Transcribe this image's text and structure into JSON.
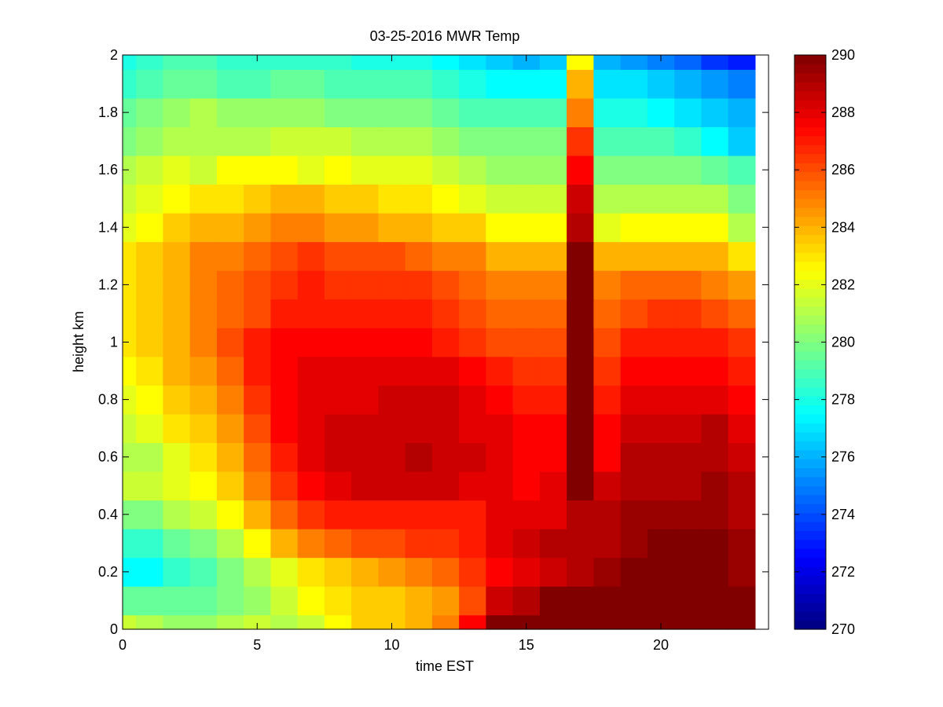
{
  "chart_data": {
    "type": "heatmap",
    "title": "03-25-2016 MWR Temp",
    "xlabel": "time EST",
    "ylabel": "height km",
    "xlim": [
      0,
      24
    ],
    "ylim": [
      0,
      2
    ],
    "xticks": [
      "0",
      "5",
      "10",
      "15",
      "20"
    ],
    "yticks": [
      "0",
      "0.2",
      "0.4",
      "0.6",
      "0.8",
      "1",
      "1.2",
      "1.4",
      "1.6",
      "1.8",
      "2"
    ],
    "colorbar": {
      "colormap": "jet",
      "limits": [
        270,
        290
      ],
      "ticks": [
        "270",
        "272",
        "274",
        "276",
        "278",
        "280",
        "282",
        "284",
        "286",
        "288",
        "290"
      ]
    },
    "time_centers": [
      0.0,
      1.0,
      2.0,
      3.0,
      4.0,
      5.0,
      6.0,
      7.0,
      8.0,
      9.0,
      10.0,
      11.0,
      12.0,
      13.0,
      14.0,
      15.0,
      16.0,
      17.0,
      18.0,
      19.0,
      20.0,
      21.0,
      22.0,
      23.0
    ],
    "height_centers": [
      0.0,
      0.1,
      0.2,
      0.3,
      0.4,
      0.5,
      0.6,
      0.7,
      0.8,
      0.9,
      1.0,
      1.1,
      1.2,
      1.3,
      1.4,
      1.5,
      1.6,
      1.7,
      1.8,
      1.9,
      2.0
    ],
    "z_units": "K",
    "z": [
      [
        281.5,
        281.0,
        280.5,
        280.5,
        281.0,
        281.5,
        281.0,
        281.5,
        282.5,
        283.5,
        283.5,
        284.0,
        285.0,
        287.5,
        290.0,
        290.0,
        290.0,
        290.0,
        290.0,
        290.0,
        290.0,
        290.0,
        290.0,
        290.0
      ],
      [
        279.5,
        279.5,
        279.5,
        279.5,
        280.0,
        280.5,
        281.5,
        282.5,
        283.0,
        283.5,
        283.5,
        284.0,
        284.5,
        286.0,
        288.5,
        289.0,
        290.0,
        290.0,
        290.0,
        290.0,
        290.0,
        290.0,
        290.0,
        290.0
      ],
      [
        277.5,
        277.5,
        278.5,
        279.0,
        280.0,
        281.0,
        282.0,
        283.0,
        283.5,
        284.0,
        284.5,
        285.0,
        285.5,
        286.5,
        287.5,
        288.0,
        288.5,
        289.0,
        289.5,
        290.0,
        290.0,
        290.0,
        290.0,
        289.5
      ],
      [
        278.5,
        278.5,
        279.5,
        280.0,
        281.0,
        282.5,
        284.0,
        285.0,
        285.5,
        286.0,
        286.0,
        286.5,
        286.5,
        287.0,
        288.0,
        288.5,
        289.0,
        289.0,
        289.0,
        289.5,
        290.0,
        290.0,
        290.0,
        289.5
      ],
      [
        280.0,
        280.0,
        281.0,
        281.5,
        282.5,
        284.0,
        285.5,
        286.5,
        287.0,
        287.0,
        287.0,
        287.0,
        287.0,
        287.0,
        288.0,
        288.0,
        288.0,
        289.0,
        289.0,
        289.5,
        289.5,
        289.5,
        289.5,
        289.0
      ],
      [
        281.5,
        281.5,
        282.0,
        282.5,
        283.5,
        285.0,
        286.5,
        287.5,
        288.0,
        288.5,
        288.5,
        288.5,
        288.5,
        288.0,
        288.0,
        287.5,
        288.0,
        290.0,
        288.5,
        289.0,
        289.0,
        289.0,
        289.5,
        289.0
      ],
      [
        281.0,
        281.0,
        282.0,
        283.0,
        284.0,
        285.5,
        287.0,
        288.0,
        288.5,
        288.5,
        288.5,
        289.0,
        288.5,
        288.5,
        288.0,
        287.5,
        287.5,
        290.0,
        287.5,
        289.0,
        289.0,
        289.0,
        289.0,
        288.5
      ],
      [
        281.5,
        282.0,
        283.0,
        283.5,
        284.5,
        286.0,
        287.5,
        288.0,
        288.5,
        288.5,
        288.5,
        288.5,
        288.5,
        288.0,
        288.0,
        287.5,
        287.5,
        290.0,
        287.5,
        288.5,
        288.5,
        288.5,
        289.0,
        288.0
      ],
      [
        282.0,
        282.5,
        283.5,
        284.0,
        285.0,
        286.5,
        287.5,
        288.0,
        288.0,
        288.0,
        288.5,
        288.5,
        288.5,
        288.0,
        287.5,
        287.0,
        287.0,
        290.0,
        287.0,
        288.0,
        288.0,
        288.0,
        288.0,
        287.5
      ],
      [
        282.5,
        283.0,
        284.0,
        284.5,
        285.5,
        287.0,
        287.5,
        288.0,
        288.0,
        288.0,
        288.0,
        288.0,
        288.0,
        287.5,
        287.0,
        286.5,
        286.5,
        290.0,
        286.5,
        287.5,
        287.5,
        287.5,
        287.5,
        287.0
      ],
      [
        283.0,
        283.5,
        284.0,
        285.0,
        286.0,
        287.0,
        287.5,
        287.5,
        287.5,
        287.5,
        287.5,
        287.5,
        287.0,
        286.5,
        286.0,
        286.0,
        286.0,
        290.0,
        286.0,
        287.0,
        287.0,
        287.0,
        287.0,
        286.5
      ],
      [
        283.0,
        283.5,
        284.0,
        285.0,
        285.5,
        286.0,
        287.0,
        287.0,
        287.0,
        287.0,
        287.0,
        287.0,
        286.5,
        286.0,
        285.5,
        285.5,
        285.5,
        290.0,
        285.5,
        286.0,
        286.5,
        286.5,
        286.0,
        285.5
      ],
      [
        283.0,
        283.5,
        284.0,
        285.0,
        285.5,
        286.0,
        286.5,
        287.0,
        286.5,
        286.5,
        286.5,
        286.5,
        286.0,
        285.5,
        285.0,
        285.0,
        285.0,
        290.0,
        285.0,
        285.5,
        285.5,
        285.5,
        285.0,
        284.5
      ],
      [
        283.0,
        283.5,
        284.0,
        285.0,
        285.0,
        285.5,
        286.0,
        286.5,
        286.0,
        286.0,
        286.0,
        285.5,
        285.0,
        285.0,
        284.0,
        284.0,
        284.0,
        290.0,
        284.0,
        284.0,
        284.0,
        284.0,
        284.0,
        283.0
      ],
      [
        282.0,
        282.5,
        283.5,
        284.0,
        284.0,
        284.5,
        285.0,
        285.0,
        284.5,
        284.5,
        284.0,
        284.0,
        283.5,
        283.5,
        282.5,
        282.5,
        282.5,
        289.0,
        282.0,
        282.5,
        282.5,
        282.5,
        282.5,
        281.0
      ],
      [
        281.5,
        282.0,
        282.5,
        283.0,
        283.0,
        283.5,
        284.0,
        284.0,
        283.5,
        283.5,
        283.0,
        283.0,
        282.5,
        282.0,
        281.5,
        281.5,
        281.5,
        288.5,
        281.0,
        281.0,
        281.0,
        281.0,
        281.0,
        280.0
      ],
      [
        281.0,
        281.5,
        282.0,
        281.5,
        282.5,
        282.5,
        282.5,
        282.0,
        282.5,
        282.0,
        282.0,
        282.0,
        281.5,
        281.0,
        280.5,
        280.5,
        280.5,
        287.5,
        280.0,
        280.0,
        280.0,
        280.0,
        279.5,
        279.0
      ],
      [
        280.0,
        280.5,
        281.0,
        281.0,
        281.0,
        281.0,
        281.5,
        281.5,
        281.5,
        281.0,
        281.0,
        281.0,
        280.5,
        280.0,
        280.0,
        280.0,
        280.0,
        286.5,
        279.0,
        279.0,
        279.0,
        278.5,
        277.5,
        276.5
      ],
      [
        279.5,
        280.0,
        280.5,
        281.0,
        280.5,
        280.5,
        280.5,
        280.5,
        280.0,
        280.0,
        280.0,
        280.0,
        279.5,
        279.0,
        279.0,
        279.0,
        279.0,
        285.0,
        278.0,
        278.0,
        277.5,
        277.0,
        276.5,
        276.0
      ],
      [
        278.5,
        279.0,
        279.5,
        279.5,
        279.0,
        279.0,
        279.5,
        279.5,
        279.0,
        279.0,
        279.0,
        279.0,
        278.5,
        278.0,
        277.5,
        277.5,
        277.5,
        284.0,
        277.0,
        277.0,
        276.5,
        276.0,
        275.5,
        275.0
      ],
      [
        278.0,
        278.5,
        279.0,
        279.0,
        278.5,
        278.5,
        278.5,
        278.5,
        278.5,
        278.0,
        278.0,
        278.0,
        277.5,
        277.0,
        276.5,
        276.0,
        276.5,
        282.5,
        276.0,
        275.5,
        275.0,
        274.5,
        273.5,
        273.0
      ]
    ]
  }
}
